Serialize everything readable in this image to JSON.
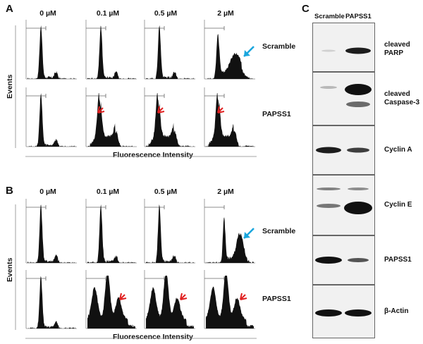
{
  "figure": {
    "panels": {
      "a": {
        "letter": "A",
        "concentrations": [
          "0 µM",
          "0.1 µM",
          "0.5 µM",
          "2 µM"
        ],
        "rows": [
          "Scramble",
          "PAPSS1"
        ],
        "ylabel": "Events",
        "xlabel": "Fluorescence Intensity"
      },
      "b": {
        "letter": "B",
        "concentrations": [
          "0 µM",
          "0.1 µM",
          "0.5 µM",
          "2 µM"
        ],
        "rows": [
          "Scramble",
          "PAPSS1"
        ],
        "ylabel": "Events",
        "xlabel": "Fluorescence Intensity"
      },
      "c": {
        "letter": "C",
        "lanes": [
          "Scramble",
          "PAPSS1"
        ],
        "blots": [
          {
            "label": "cleaved\nPARP"
          },
          {
            "label": "cleaved\nCaspase-3"
          },
          {
            "label": "Cyclin A"
          },
          {
            "label": "Cyclin E"
          },
          {
            "label": "PAPSS1"
          },
          {
            "label": "β-Actin"
          }
        ]
      }
    },
    "colors": {
      "histogram": "#111111",
      "arrow_blue": "#1aa6dd",
      "arrow_red": "#e02020",
      "axis": "#888888"
    }
  }
}
